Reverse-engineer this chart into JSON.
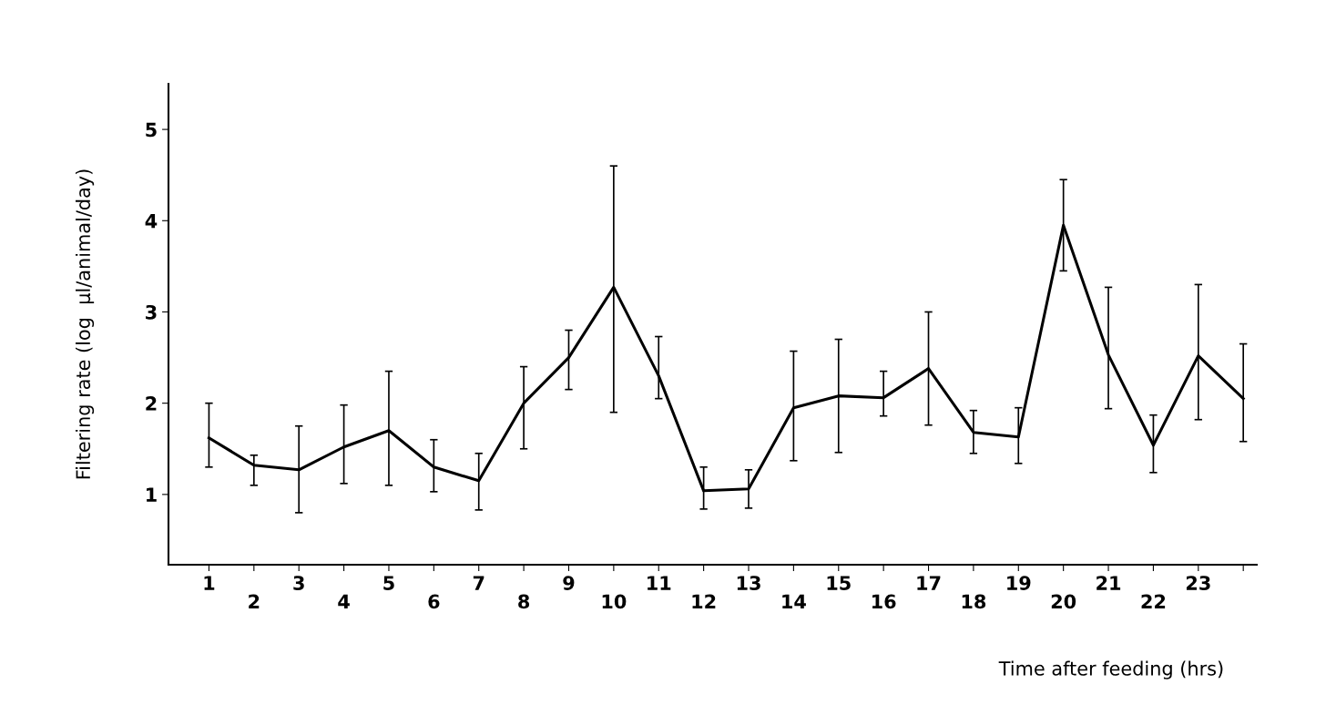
{
  "chart_data": {
    "type": "line",
    "xlabel": "Time after feeding (hrs)",
    "ylabel": "Filtering rate (log  μl/animal/day)",
    "x": [
      1,
      2,
      3,
      4,
      5,
      6,
      7,
      8,
      9,
      10,
      11,
      12,
      13,
      14,
      15,
      16,
      17,
      18,
      19,
      20,
      21,
      22,
      23,
      24
    ],
    "series": [
      {
        "color": "#000000",
        "values": [
          1.62,
          1.32,
          1.27,
          1.52,
          1.7,
          1.3,
          1.15,
          2.0,
          2.5,
          3.27,
          2.3,
          1.04,
          1.06,
          1.95,
          2.08,
          2.06,
          2.38,
          1.68,
          1.63,
          3.95,
          2.53,
          1.54,
          2.52,
          2.05
        ],
        "errors": [
          [
            1.3,
            2.0
          ],
          [
            1.1,
            1.43
          ],
          [
            0.8,
            1.75
          ],
          [
            1.12,
            1.98
          ],
          [
            1.1,
            2.35
          ],
          [
            1.03,
            1.6
          ],
          [
            0.83,
            1.45
          ],
          [
            1.5,
            2.4
          ],
          [
            2.15,
            2.8
          ],
          [
            1.9,
            4.6
          ],
          [
            2.05,
            2.73
          ],
          [
            0.84,
            1.3
          ],
          [
            0.85,
            1.27
          ],
          [
            1.37,
            2.57
          ],
          [
            1.46,
            2.7
          ],
          [
            1.86,
            2.35
          ],
          [
            1.76,
            3.0
          ],
          [
            1.45,
            1.92
          ],
          [
            1.34,
            1.95
          ],
          [
            3.45,
            4.45
          ],
          [
            1.94,
            3.27
          ],
          [
            1.24,
            1.87
          ],
          [
            1.82,
            3.3
          ],
          [
            1.58,
            2.65
          ]
        ]
      }
    ],
    "xlim": [
      0.1,
      24.3
    ],
    "ylim": [
      0.23,
      5.5
    ],
    "xticks": [
      1,
      {
        "value": 2,
        "label": null
      },
      3,
      {
        "value": 4,
        "label": null
      },
      5,
      {
        "value": 6,
        "label": null
      },
      7,
      {
        "value": 8,
        "label": null
      },
      9,
      {
        "value": 10,
        "label": null
      },
      11,
      {
        "value": 12,
        "label": null
      },
      13,
      {
        "value": 14,
        "label": null
      },
      15,
      {
        "value": 16,
        "label": null
      },
      17,
      {
        "value": 18,
        "label": null
      },
      19,
      {
        "value": 20,
        "label": null
      },
      21,
      {
        "value": 22,
        "label": null
      },
      23,
      {
        "value": 24,
        "label": null
      }
    ],
    "x2lim": [
      0.1,
      24.3
    ],
    "x2ticks": [
      2,
      4,
      6,
      8,
      10,
      12,
      14,
      16,
      18,
      20,
      22
    ],
    "yticks": [
      1,
      2,
      3,
      4,
      5
    ],
    "grid": false,
    "legend": false,
    "marker": "none",
    "line_style": "solid"
  }
}
